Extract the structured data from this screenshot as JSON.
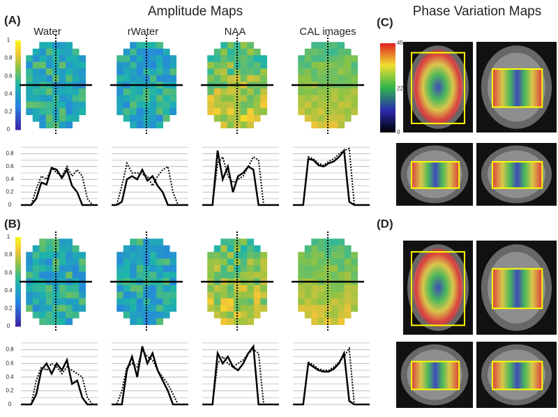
{
  "title_amplitude": "Amplitude Maps",
  "title_phase": "Phase Variation Maps",
  "columns": [
    "Water",
    "rWater",
    "NAA",
    "CAL images"
  ],
  "amplitude_panels": [
    {
      "label": "(A)",
      "colorbar_ticks": [
        0,
        0.2,
        0.4,
        0.6,
        0.8,
        1
      ],
      "profile_yticks": [
        0,
        0.2,
        0.4,
        0.6,
        0.8
      ],
      "profiles": [
        {
          "solid": [
            0,
            0,
            0,
            0.1,
            0.35,
            0.32,
            0.58,
            0.55,
            0.42,
            0.55,
            0.3,
            0.2,
            0,
            0,
            0,
            0
          ],
          "dotted": [
            0,
            0,
            0,
            0.25,
            0.45,
            0.4,
            0.58,
            0.5,
            0.45,
            0.6,
            0.45,
            0.55,
            0.45,
            0.1,
            0,
            0
          ]
        },
        {
          "solid": [
            0,
            0,
            0.05,
            0.4,
            0.45,
            0.4,
            0.55,
            0.38,
            0.45,
            0.3,
            0.2,
            0,
            0,
            0,
            0,
            0
          ],
          "dotted": [
            0,
            0,
            0.3,
            0.65,
            0.5,
            0.5,
            0.48,
            0.45,
            0.3,
            0.45,
            0.55,
            0.6,
            0.2,
            0,
            0,
            0
          ]
        },
        {
          "solid": [
            0,
            0,
            0,
            0.85,
            0.4,
            0.6,
            0.2,
            0.45,
            0.5,
            0.6,
            0.55,
            0,
            0,
            0,
            0,
            0
          ],
          "dotted": [
            0,
            0,
            0,
            0.65,
            0.75,
            0.45,
            0.35,
            0.4,
            0.45,
            0.6,
            0.75,
            0.7,
            0,
            0,
            0,
            0
          ]
        },
        {
          "solid": [
            0,
            0,
            0,
            0.72,
            0.7,
            0.62,
            0.6,
            0.65,
            0.68,
            0.75,
            0.85,
            0.05,
            0,
            0,
            0,
            0
          ],
          "dotted": [
            0,
            0,
            0,
            0.75,
            0.72,
            0.65,
            0.62,
            0.68,
            0.72,
            0.8,
            0.85,
            0.88,
            0,
            0,
            0,
            0
          ]
        }
      ]
    },
    {
      "label": "(B)",
      "colorbar_ticks": [
        0,
        0.2,
        0.4,
        0.6,
        0.8,
        1
      ],
      "profile_yticks": [
        0,
        0.2,
        0.4,
        0.6,
        0.8
      ],
      "profiles": [
        {
          "solid": [
            0,
            0,
            0,
            0.15,
            0.5,
            0.6,
            0.45,
            0.6,
            0.5,
            0.65,
            0.3,
            0.35,
            0.1,
            0,
            0,
            0
          ],
          "dotted": [
            0,
            0,
            0,
            0.35,
            0.55,
            0.5,
            0.6,
            0.55,
            0.45,
            0.55,
            0.5,
            0.45,
            0.4,
            0.1,
            0,
            0
          ]
        },
        {
          "solid": [
            0,
            0,
            0,
            0.5,
            0.7,
            0.4,
            0.85,
            0.6,
            0.75,
            0.5,
            0.35,
            0.2,
            0,
            0,
            0,
            0
          ],
          "dotted": [
            0,
            0,
            0.2,
            0.55,
            0.6,
            0.55,
            0.8,
            0.7,
            0.65,
            0.5,
            0.4,
            0.3,
            0.15,
            0,
            0,
            0
          ]
        },
        {
          "solid": [
            0,
            0,
            0,
            0.75,
            0.6,
            0.7,
            0.55,
            0.5,
            0.6,
            0.75,
            0.85,
            0,
            0,
            0,
            0,
            0
          ],
          "dotted": [
            0,
            0,
            0,
            0.6,
            0.7,
            0.6,
            0.55,
            0.6,
            0.65,
            0.75,
            0.8,
            0.75,
            0,
            0,
            0,
            0
          ]
        },
        {
          "solid": [
            0,
            0,
            0,
            0.6,
            0.55,
            0.5,
            0.48,
            0.48,
            0.52,
            0.6,
            0.75,
            0.05,
            0,
            0,
            0,
            0
          ],
          "dotted": [
            0,
            0,
            0,
            0.62,
            0.58,
            0.52,
            0.5,
            0.5,
            0.55,
            0.62,
            0.7,
            0.82,
            0,
            0,
            0,
            0
          ]
        }
      ]
    }
  ],
  "phase_panels": [
    {
      "label": "(C)",
      "colorbar_ticks": [
        0,
        22,
        45
      ]
    },
    {
      "label": "(D)"
    }
  ]
}
